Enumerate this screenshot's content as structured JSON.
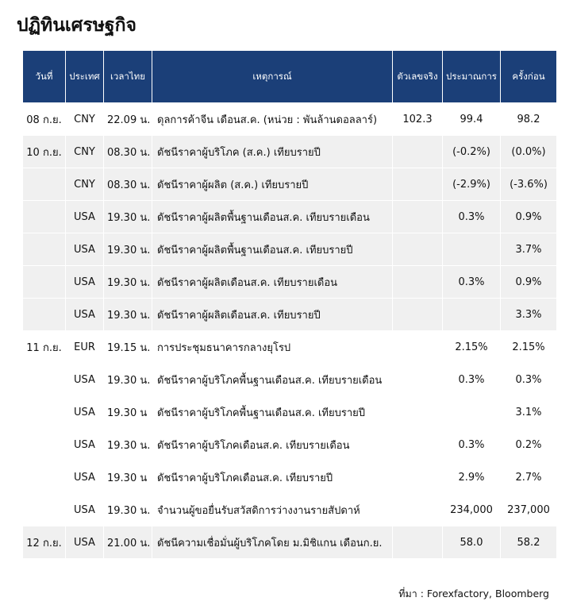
{
  "header": {
    "title": "ปฏิทินเศรษฐกิจ"
  },
  "table": {
    "columns": [
      "วันที่",
      "ประเทศ",
      "เวลาไทย",
      "เหตุการณ์",
      "ตัวเลขจริง",
      "ประมาณการ",
      "ครั้งก่อน"
    ],
    "rows": [
      [
        "08 ก.ย.",
        "CNY",
        "22.09 น.",
        "ดุลการค้าจีน เดือนส.ค. (หน่วย : พันล้านดอลลาร์)",
        "102.3",
        "99.4",
        "98.2"
      ],
      [
        "10 ก.ย.",
        "CNY",
        "08.30 น.",
        "ดัชนีราคาผู้บริโภค (ส.ค.) เทียบรายปี",
        null,
        "(-0.2%)",
        "(0.0%)"
      ],
      [
        null,
        "CNY",
        "08.30 น.",
        "ดัชนีราคาผู้ผลิต (ส.ค.) เทียบรายปี",
        null,
        "(-2.9%)",
        "(-3.6%)"
      ],
      [
        null,
        "USA",
        "19.30 น.",
        "ดัชนีราคาผู้ผลิตพื้นฐานเดือนส.ค. เทียบรายเดือน",
        null,
        "0.3%",
        "0.9%"
      ],
      [
        null,
        "USA",
        "19.30 น.",
        "ดัชนีราคาผู้ผลิตพื้นฐานเดือนส.ค. เทียบรายปี",
        null,
        null,
        "3.7%"
      ],
      [
        null,
        "USA",
        "19.30 น.",
        "ดัชนีราคาผู้ผลิตเดือนส.ค. เทียบรายเดือน",
        null,
        "0.3%",
        "0.9%"
      ],
      [
        null,
        "USA",
        "19.30 น.",
        "ดัชนีราคาผู้ผลิตเดือนส.ค. เทียบรายปี",
        null,
        null,
        "3.3%"
      ],
      [
        "11 ก.ย.",
        "EUR",
        "19.15 น.",
        "การประชุมธนาคารกลางยุโรป",
        null,
        "2.15%",
        "2.15%"
      ],
      [
        null,
        "USA",
        "19.30 น.",
        "ดัชนีราคาผู้บริโภคพื้นฐานเดือนส.ค. เทียบรายเดือน",
        null,
        "0.3%",
        "0.3%"
      ],
      [
        null,
        "USA",
        "19.30 น",
        "ดัชนีราคาผู้บริโภคพื้นฐานเดือนส.ค. เทียบรายปี",
        null,
        null,
        "3.1%"
      ],
      [
        null,
        "USA",
        "19.30 น.",
        "ดัชนีราคาผู้บริโภคเดือนส.ค. เทียบรายเดือน",
        null,
        "0.3%",
        "0.2%"
      ],
      [
        null,
        "USA",
        "19.30 น",
        "ดัชนีราคาผู้บริโภคเดือนส.ค. เทียบรายปี",
        null,
        "2.9%",
        "2.7%"
      ],
      [
        null,
        "USA",
        "19.30 น.",
        "จำนวนผู้ขอยื่นรับสวัสดิการว่างงานรายสัปดาห์",
        null,
        "234,000",
        "237,000"
      ],
      [
        "12 ก.ย.",
        "USA",
        "21.00 น.",
        "ดัชนีความเชื่อมั่นผู้บริโภคโดย ม.มิชิแกน เดือนก.ย.",
        null,
        "58.0",
        "58.2"
      ]
    ]
  },
  "footer": {
    "source": "ที่มา : Forexfactory, Bloomberg"
  }
}
